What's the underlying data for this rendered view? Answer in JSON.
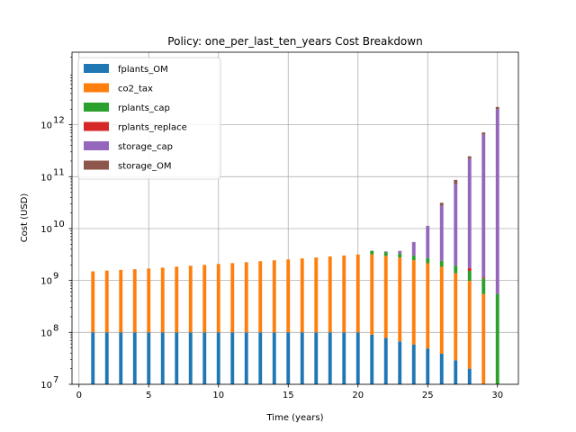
{
  "chart_data": {
    "type": "bar",
    "stacked": true,
    "title": "Policy: one_per_last_ten_years Cost Breakdown",
    "xlabel": "Time (years)",
    "ylabel": "Cost (USD)",
    "yscale": "log",
    "xlim": [
      -0.5,
      31.5
    ],
    "ylim": [
      10000000,
      25000000000000
    ],
    "x_ticks": [
      0,
      5,
      10,
      15,
      20,
      25,
      30
    ],
    "y_ticks": [
      {
        "value": 10000000,
        "base": "10",
        "exp": "7"
      },
      {
        "value": 100000000,
        "base": "10",
        "exp": "8"
      },
      {
        "value": 1000000000,
        "base": "10",
        "exp": "9"
      },
      {
        "value": 10000000000,
        "base": "10",
        "exp": "10"
      },
      {
        "value": 100000000000,
        "base": "10",
        "exp": "11"
      },
      {
        "value": 1000000000000,
        "base": "10",
        "exp": "12"
      }
    ],
    "grid": true,
    "legend_position": "top-left",
    "x": [
      1,
      2,
      3,
      4,
      5,
      6,
      7,
      8,
      9,
      10,
      11,
      12,
      13,
      14,
      15,
      16,
      17,
      18,
      19,
      20,
      21,
      22,
      23,
      24,
      25,
      26,
      27,
      28,
      29,
      30
    ],
    "series": [
      {
        "name": "fplants_OM",
        "color": "#1f77b4",
        "values": [
          100000000.0,
          100000000.0,
          100000000.0,
          100000000.0,
          100000000.0,
          100000000.0,
          100000000.0,
          100000000.0,
          100000000.0,
          100000000.0,
          100000000.0,
          100000000.0,
          100000000.0,
          100000000.0,
          100000000.0,
          100000000.0,
          100000000.0,
          100000000.0,
          100000000.0,
          100000000.0,
          90000000.0,
          78000000.0,
          67000000.0,
          58000000.0,
          49000000.0,
          39000000.0,
          29000000.0,
          20000000.0,
          10000000.0,
          0
        ]
      },
      {
        "name": "co2_tax",
        "color": "#ff7f0e",
        "values": [
          1400000000.0,
          1450000000.0,
          1500000000.0,
          1550000000.0,
          1600000000.0,
          1670000000.0,
          1750000000.0,
          1820000000.0,
          1900000000.0,
          1980000000.0,
          2060000000.0,
          2150000000.0,
          2250000000.0,
          2350000000.0,
          2450000000.0,
          2560000000.0,
          2680000000.0,
          2800000000.0,
          2930000000.0,
          3070000000.0,
          3100000000.0,
          2900000000.0,
          2700000000.0,
          2400000000.0,
          2100000000.0,
          1800000000.0,
          1350000000.0,
          960000000.0,
          540000000.0,
          0
        ]
      },
      {
        "name": "rplants_cap",
        "color": "#2ca02c",
        "values": [
          0,
          0,
          0,
          0,
          0,
          0,
          0,
          0,
          0,
          0,
          0,
          0,
          0,
          0,
          0,
          0,
          0,
          0,
          0,
          0,
          550000000.0,
          550000000.0,
          550000000.0,
          550000000.0,
          550000000.0,
          550000000.0,
          550000000.0,
          550000000.0,
          550000000.0,
          550000000.0
        ]
      },
      {
        "name": "rplants_replace",
        "color": "#d62728",
        "values": [
          0,
          0,
          0,
          0,
          0,
          0,
          0,
          0,
          0,
          0,
          0,
          0,
          0,
          0,
          0,
          0,
          0,
          0,
          0,
          0,
          0,
          0,
          0,
          0,
          0,
          0,
          0,
          200000000.0,
          50000000.0,
          0
        ]
      },
      {
        "name": "storage_cap",
        "color": "#9467bd",
        "values": [
          0,
          0,
          0,
          0,
          0,
          0,
          0,
          0,
          0,
          0,
          0,
          0,
          0,
          0,
          0,
          0,
          0,
          0,
          0,
          0,
          0,
          100000000.0,
          400000000.0,
          2500000000.0,
          8500000000.0,
          25000000000.0,
          70000000000.0,
          220000000000.0,
          640000000000.0,
          2000000000000.0
        ]
      },
      {
        "name": "storage_OM",
        "color": "#8c564b",
        "values": [
          0,
          0,
          0,
          0,
          0,
          0,
          0,
          0,
          0,
          0,
          0,
          0,
          0,
          0,
          0,
          0,
          0,
          0,
          0,
          0,
          0,
          0,
          0,
          0,
          100000000.0,
          4000000000.0,
          15000000000.0,
          25000000000.0,
          70000000000.0,
          200000000000.0
        ]
      }
    ]
  }
}
